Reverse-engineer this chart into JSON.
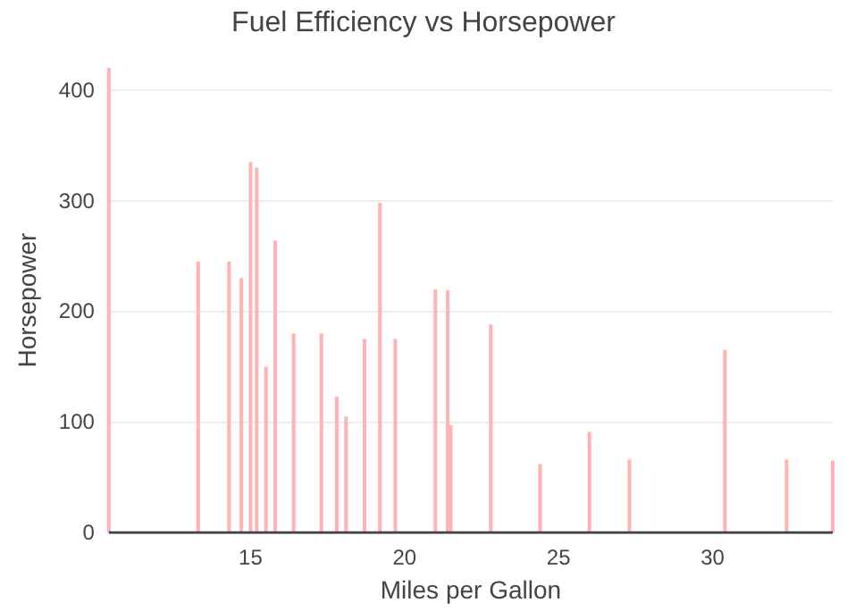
{
  "chart_data": {
    "type": "bar",
    "title": "Fuel Efficiency vs Horsepower",
    "xlabel": "Miles per Gallon",
    "ylabel": "Horsepower",
    "x": [
      10.4,
      13.3,
      14.3,
      14.7,
      15.0,
      15.2,
      15.5,
      15.8,
      16.4,
      17.3,
      17.8,
      18.1,
      18.7,
      19.2,
      19.7,
      21.0,
      21.4,
      21.5,
      22.8,
      24.4,
      26.0,
      27.3,
      30.4,
      32.4,
      33.9
    ],
    "values": [
      420,
      245,
      245,
      230,
      335,
      330,
      150,
      264,
      180,
      180,
      123,
      105,
      175,
      298,
      175,
      220,
      219,
      97,
      188,
      62,
      91,
      66,
      165,
      66,
      65
    ],
    "color": "#ffb3b3",
    "xlim": [
      10.4,
      33.9
    ],
    "xticks": [
      15,
      20,
      25,
      30
    ],
    "ylim": [
      0,
      420
    ],
    "yticks": [
      0,
      100,
      200,
      300,
      400
    ],
    "grid": "y"
  }
}
